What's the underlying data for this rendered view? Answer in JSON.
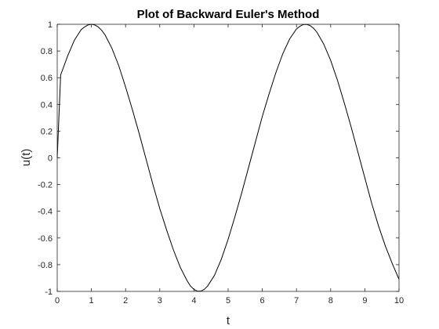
{
  "chart_data": {
    "type": "line",
    "title": "Plot of Backward Euler's Method",
    "xlabel": "t",
    "ylabel": "u(t)",
    "xlim": [
      0,
      10
    ],
    "ylim": [
      -1,
      1
    ],
    "x_ticks": [
      0,
      1,
      2,
      3,
      4,
      5,
      6,
      7,
      8,
      9,
      10
    ],
    "x_tick_labels": [
      "0",
      "1",
      "2",
      "3",
      "4",
      "5",
      "6",
      "7",
      "8",
      "9",
      "10"
    ],
    "y_ticks": [
      -1,
      -0.8,
      -0.6,
      -0.4,
      -0.2,
      0,
      0.2,
      0.4,
      0.6,
      0.8,
      1
    ],
    "y_tick_labels": [
      "-1",
      "-0.8",
      "-0.6",
      "-0.4",
      "-0.2",
      "0",
      "0.2",
      "0.4",
      "0.6",
      "0.8",
      "1"
    ],
    "grid": false,
    "legend": "none",
    "series": [
      {
        "color": "#000000",
        "x": [
          0,
          0.05,
          0.1,
          0.2,
          0.3,
          0.4,
          0.5,
          0.6,
          0.7,
          0.8,
          0.9,
          1.0,
          1.1,
          1.2,
          1.3,
          1.4,
          1.5,
          1.6,
          1.8,
          2.0,
          2.2,
          2.4,
          2.6,
          2.8,
          3.0,
          3.2,
          3.4,
          3.6,
          3.8,
          3.9,
          4.0,
          4.1,
          4.2,
          4.3,
          4.4,
          4.6,
          4.8,
          5.0,
          5.2,
          5.4,
          5.6,
          5.8,
          6.0,
          6.2,
          6.4,
          6.6,
          6.8,
          7.0,
          7.1,
          7.2,
          7.3,
          7.4,
          7.5,
          7.6,
          7.8,
          8.0,
          8.2,
          8.4,
          8.6,
          8.8,
          9.0,
          9.2,
          9.4,
          9.6,
          9.8,
          10.0
        ],
        "y": [
          0,
          0.31,
          0.62,
          0.69,
          0.76,
          0.82,
          0.88,
          0.92,
          0.96,
          0.98,
          0.995,
          1.0,
          0.995,
          0.98,
          0.955,
          0.92,
          0.87,
          0.82,
          0.69,
          0.53,
          0.36,
          0.18,
          -0.01,
          -0.2,
          -0.38,
          -0.54,
          -0.69,
          -0.82,
          -0.92,
          -0.96,
          -0.985,
          -0.998,
          -0.998,
          -0.985,
          -0.96,
          -0.88,
          -0.76,
          -0.61,
          -0.44,
          -0.26,
          -0.07,
          0.12,
          0.31,
          0.48,
          0.64,
          0.78,
          0.89,
          0.965,
          0.985,
          0.998,
          0.999,
          0.99,
          0.97,
          0.94,
          0.85,
          0.73,
          0.58,
          0.41,
          0.23,
          0.04,
          -0.15,
          -0.34,
          -0.51,
          -0.66,
          -0.79,
          -0.91
        ]
      }
    ]
  }
}
